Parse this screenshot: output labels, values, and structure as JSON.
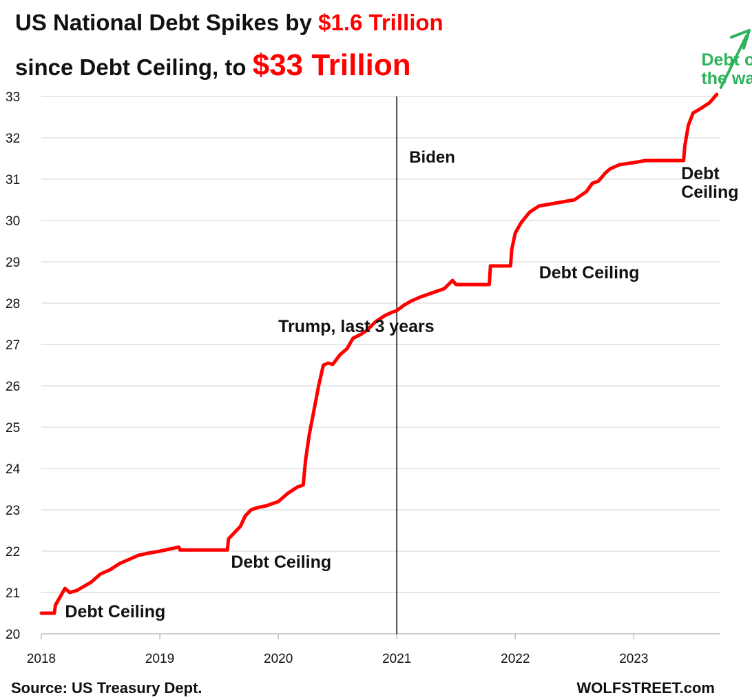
{
  "title": {
    "line1_prefix": "US National Debt Spikes by ",
    "line1_highlight": "$1.6 Trillion",
    "line2_prefix": "since Debt Ceiling, to ",
    "line2_highlight": "$33 Trillion"
  },
  "footer": {
    "source": "Source: US Treasury Dept.",
    "brand": "WOLFSTREET.com"
  },
  "colors": {
    "series": "#ff0000",
    "grid": "#d9d9d9",
    "vline": "#000000",
    "callout": "#2eb35a"
  },
  "chart_data": {
    "type": "line",
    "title": "US National Debt Spikes by $1.6 Trillion since Debt Ceiling, to $33 Trillion",
    "xlabel": "",
    "ylabel": "",
    "xlim": [
      2018.0,
      2023.73
    ],
    "ylim": [
      20,
      33
    ],
    "x_ticks": [
      2018,
      2019,
      2020,
      2021,
      2022,
      2023
    ],
    "x_tick_labels": [
      "2018",
      "2019",
      "2020",
      "2021",
      "2022",
      "2023"
    ],
    "y_ticks": [
      20,
      21,
      22,
      23,
      24,
      25,
      26,
      27,
      28,
      29,
      30,
      31,
      32,
      33
    ],
    "y_tick_labels": [
      "20",
      "21",
      "22",
      "23",
      "24",
      "25",
      "26",
      "27",
      "28",
      "29",
      "30",
      "31",
      "32",
      "33"
    ],
    "grid": "horizontal",
    "legend": "none",
    "vertical_line": {
      "x": 2021.0,
      "label": "Biden"
    },
    "series": [
      {
        "x": [
          2018.0,
          2018.11,
          2018.12,
          2018.16,
          2018.2,
          2018.24,
          2018.3,
          2018.36,
          2018.42,
          2018.5,
          2018.58,
          2018.66,
          2018.74,
          2018.82,
          2018.9,
          2019.0,
          2019.08,
          2019.16,
          2019.17,
          2019.35,
          2019.5,
          2019.57,
          2019.58,
          2019.63,
          2019.68,
          2019.72,
          2019.77,
          2019.82,
          2019.9,
          2020.0,
          2020.08,
          2020.16,
          2020.21,
          2020.23,
          2020.26,
          2020.3,
          2020.34,
          2020.38,
          2020.42,
          2020.46,
          2020.52,
          2020.58,
          2020.63,
          2020.7,
          2020.75,
          2020.82,
          2020.9,
          2020.96,
          2021.0,
          2021.06,
          2021.12,
          2021.2,
          2021.3,
          2021.4,
          2021.47,
          2021.5,
          2021.55,
          2021.62,
          2021.78,
          2021.79,
          2021.96,
          2021.97,
          2022.0,
          2022.05,
          2022.12,
          2022.2,
          2022.3,
          2022.4,
          2022.5,
          2022.6,
          2022.65,
          2022.7,
          2022.76,
          2022.8,
          2022.88,
          2023.0,
          2023.1,
          2023.2,
          2023.42,
          2023.43,
          2023.46,
          2023.5,
          2023.56,
          2023.64,
          2023.7
        ],
        "y": [
          20.5,
          20.5,
          20.7,
          20.9,
          21.1,
          21.0,
          21.05,
          21.15,
          21.25,
          21.45,
          21.55,
          21.7,
          21.8,
          21.9,
          21.95,
          22.0,
          22.05,
          22.1,
          22.03,
          22.03,
          22.03,
          22.03,
          22.3,
          22.45,
          22.6,
          22.85,
          23.0,
          23.05,
          23.1,
          23.2,
          23.4,
          23.55,
          23.6,
          24.2,
          24.8,
          25.4,
          26.0,
          26.5,
          26.55,
          26.52,
          26.75,
          26.9,
          27.15,
          27.25,
          27.35,
          27.55,
          27.7,
          27.78,
          27.82,
          27.95,
          28.05,
          28.15,
          28.25,
          28.35,
          28.55,
          28.45,
          28.45,
          28.45,
          28.45,
          28.9,
          28.9,
          29.3,
          29.7,
          29.95,
          30.2,
          30.35,
          30.4,
          30.45,
          30.5,
          30.7,
          30.9,
          30.95,
          31.15,
          31.25,
          31.35,
          31.4,
          31.45,
          31.45,
          31.45,
          31.8,
          32.3,
          32.6,
          32.7,
          32.85,
          33.05
        ]
      }
    ],
    "annotations": [
      {
        "text": "Debt Ceiling",
        "x": 2018.2,
        "y": 20.4
      },
      {
        "text": "Debt Ceiling",
        "x": 2019.6,
        "y": 21.6
      },
      {
        "text": "Trump, last 3 years",
        "x": 2020.0,
        "y": 27.3
      },
      {
        "text": "Debt Ceiling",
        "x": 2022.2,
        "y": 28.6
      },
      {
        "text": "Debt",
        "x": 2023.4,
        "y": 31.0
      },
      {
        "text": "Ceiling",
        "x": 2023.4,
        "y": 30.55
      },
      {
        "text": "Debt out",
        "x": 2023.57,
        "y": 33.75
      },
      {
        "text": "the wazoo",
        "x": 2023.57,
        "y": 33.3
      }
    ]
  }
}
